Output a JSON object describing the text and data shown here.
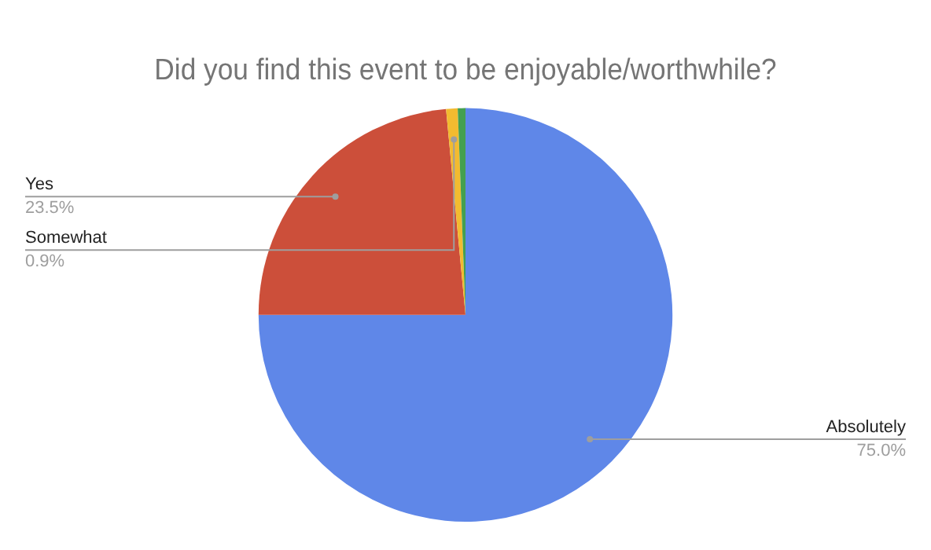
{
  "chart_data": {
    "type": "pie",
    "title": "Did you find this event to be enjoyable/worthwhile?",
    "categories": [
      "Absolutely",
      "Yes",
      "Somewhat",
      null
    ],
    "values": [
      75.0,
      23.5,
      0.9,
      0.6
    ],
    "colors": [
      "#5f87e8",
      "#cc4f3a",
      "#f2bb30",
      "#44a04f"
    ],
    "value_labels": [
      "75.0%",
      "23.5%",
      "0.9%",
      null
    ],
    "legend": false
  }
}
